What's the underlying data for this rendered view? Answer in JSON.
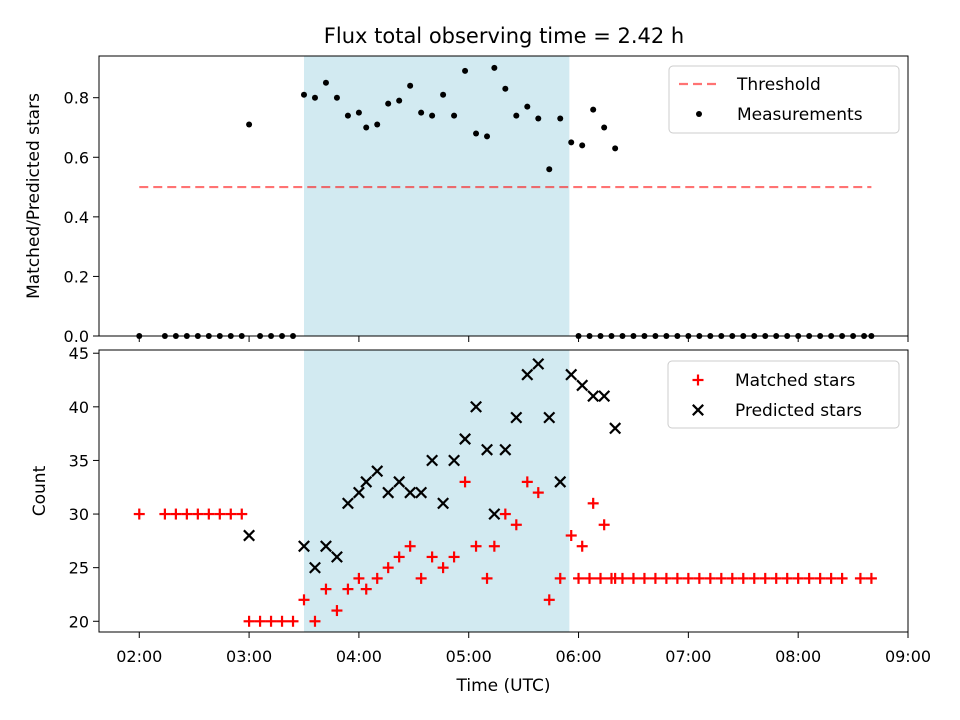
{
  "title": "Flux total observing time = 2.42 h",
  "colors": {
    "shade": "#add8e6",
    "threshold": "#ff0000",
    "measurement": "#000000",
    "matched": "#ff0000",
    "predicted": "#000000"
  },
  "chart_data": [
    {
      "type": "scatter",
      "ylabel": "Matched/Predicted stars",
      "ylim": [
        0,
        0.94
      ],
      "yticks": [
        "0.0",
        "0.2",
        "0.4",
        "0.6",
        "0.8"
      ],
      "shaded_interval": [
        "03:30",
        "05:55"
      ],
      "legend": {
        "placement": "top-right"
      },
      "threshold": {
        "name": "Threshold",
        "value": 0.5,
        "x_range": [
          "02:00",
          "08:40"
        ]
      },
      "series": [
        {
          "name": "Measurements",
          "points": [
            [
              "02:00",
              0
            ],
            [
              "02:14",
              0
            ],
            [
              "02:20",
              0
            ],
            [
              "02:26",
              0
            ],
            [
              "02:32",
              0
            ],
            [
              "02:38",
              0
            ],
            [
              "02:44",
              0
            ],
            [
              "02:50",
              0
            ],
            [
              "02:56",
              0
            ],
            [
              "03:00",
              0.71
            ],
            [
              "03:06",
              0
            ],
            [
              "03:12",
              0
            ],
            [
              "03:18",
              0
            ],
            [
              "03:24",
              0
            ],
            [
              "03:30",
              0.81
            ],
            [
              "03:36",
              0.8
            ],
            [
              "03:42",
              0.85
            ],
            [
              "03:48",
              0.8
            ],
            [
              "03:54",
              0.74
            ],
            [
              "04:00",
              0.75
            ],
            [
              "04:04",
              0.7
            ],
            [
              "04:10",
              0.71
            ],
            [
              "04:16",
              0.78
            ],
            [
              "04:22",
              0.79
            ],
            [
              "04:28",
              0.84
            ],
            [
              "04:34",
              0.75
            ],
            [
              "04:40",
              0.74
            ],
            [
              "04:46",
              0.81
            ],
            [
              "04:52",
              0.74
            ],
            [
              "04:58",
              0.89
            ],
            [
              "05:04",
              0.68
            ],
            [
              "05:10",
              0.67
            ],
            [
              "05:14",
              0.9
            ],
            [
              "05:20",
              0.83
            ],
            [
              "05:26",
              0.74
            ],
            [
              "05:32",
              0.77
            ],
            [
              "05:38",
              0.73
            ],
            [
              "05:44",
              0.56
            ],
            [
              "05:50",
              0.73
            ],
            [
              "05:56",
              0.65
            ],
            [
              "06:02",
              0.64
            ],
            [
              "06:08",
              0.76
            ],
            [
              "06:14",
              0.7
            ],
            [
              "06:20",
              0.63
            ],
            [
              "06:00",
              0
            ],
            [
              "06:06",
              0
            ],
            [
              "06:12",
              0
            ],
            [
              "06:18",
              0
            ],
            [
              "06:24",
              0
            ],
            [
              "06:30",
              0
            ],
            [
              "06:36",
              0
            ],
            [
              "06:42",
              0
            ],
            [
              "06:48",
              0
            ],
            [
              "06:54",
              0
            ],
            [
              "07:00",
              0
            ],
            [
              "07:06",
              0
            ],
            [
              "07:12",
              0
            ],
            [
              "07:18",
              0
            ],
            [
              "07:24",
              0
            ],
            [
              "07:30",
              0
            ],
            [
              "07:36",
              0
            ],
            [
              "07:42",
              0
            ],
            [
              "07:48",
              0
            ],
            [
              "07:54",
              0
            ],
            [
              "08:00",
              0
            ],
            [
              "08:06",
              0
            ],
            [
              "08:12",
              0
            ],
            [
              "08:18",
              0
            ],
            [
              "08:24",
              0
            ],
            [
              "08:30",
              0
            ],
            [
              "08:36",
              0
            ],
            [
              "08:40",
              0
            ]
          ]
        }
      ]
    },
    {
      "type": "scatter",
      "xlabel": "Time (UTC)",
      "ylabel": "Count",
      "ylim": [
        19,
        45.3
      ],
      "yticks": [
        "20",
        "25",
        "30",
        "35",
        "40",
        "45"
      ],
      "xticks": [
        "02:00",
        "03:00",
        "04:00",
        "05:00",
        "06:00",
        "07:00",
        "08:00",
        "09:00"
      ],
      "xlim": [
        "01:38",
        "09:00"
      ],
      "shaded_interval": [
        "03:30",
        "05:55"
      ],
      "legend": {
        "placement": "top-right"
      },
      "series": [
        {
          "name": "Matched stars",
          "marker": "+",
          "points": [
            [
              "02:00",
              30
            ],
            [
              "02:14",
              30
            ],
            [
              "02:20",
              30
            ],
            [
              "02:26",
              30
            ],
            [
              "02:32",
              30
            ],
            [
              "02:38",
              30
            ],
            [
              "02:44",
              30
            ],
            [
              "02:50",
              30
            ],
            [
              "02:56",
              30
            ],
            [
              "03:00",
              20
            ],
            [
              "03:06",
              20
            ],
            [
              "03:12",
              20
            ],
            [
              "03:18",
              20
            ],
            [
              "03:24",
              20
            ],
            [
              "03:30",
              22
            ],
            [
              "03:36",
              20
            ],
            [
              "03:42",
              23
            ],
            [
              "03:48",
              21
            ],
            [
              "03:54",
              23
            ],
            [
              "04:00",
              24
            ],
            [
              "04:04",
              23
            ],
            [
              "04:10",
              24
            ],
            [
              "04:16",
              25
            ],
            [
              "04:22",
              26
            ],
            [
              "04:28",
              27
            ],
            [
              "04:34",
              24
            ],
            [
              "04:40",
              26
            ],
            [
              "04:46",
              25
            ],
            [
              "04:52",
              26
            ],
            [
              "04:58",
              33
            ],
            [
              "05:04",
              27
            ],
            [
              "05:10",
              24
            ],
            [
              "05:14",
              27
            ],
            [
              "05:20",
              30
            ],
            [
              "05:26",
              29
            ],
            [
              "05:32",
              33
            ],
            [
              "05:38",
              32
            ],
            [
              "05:44",
              22
            ],
            [
              "05:50",
              24
            ],
            [
              "05:56",
              28
            ],
            [
              "06:02",
              27
            ],
            [
              "06:08",
              31
            ],
            [
              "06:14",
              29
            ],
            [
              "06:20",
              24
            ],
            [
              "06:00",
              24
            ],
            [
              "06:06",
              24
            ],
            [
              "06:12",
              24
            ],
            [
              "06:18",
              24
            ],
            [
              "06:24",
              24
            ],
            [
              "06:30",
              24
            ],
            [
              "06:36",
              24
            ],
            [
              "06:42",
              24
            ],
            [
              "06:48",
              24
            ],
            [
              "06:54",
              24
            ],
            [
              "07:00",
              24
            ],
            [
              "07:06",
              24
            ],
            [
              "07:12",
              24
            ],
            [
              "07:18",
              24
            ],
            [
              "07:24",
              24
            ],
            [
              "07:30",
              24
            ],
            [
              "07:36",
              24
            ],
            [
              "07:42",
              24
            ],
            [
              "07:48",
              24
            ],
            [
              "07:54",
              24
            ],
            [
              "08:00",
              24
            ],
            [
              "08:06",
              24
            ],
            [
              "08:12",
              24
            ],
            [
              "08:18",
              24
            ],
            [
              "08:24",
              24
            ],
            [
              "08:34",
              24
            ],
            [
              "08:40",
              24
            ]
          ]
        },
        {
          "name": "Predicted stars",
          "marker": "x",
          "points": [
            [
              "03:00",
              28
            ],
            [
              "03:30",
              27
            ],
            [
              "03:36",
              25
            ],
            [
              "03:42",
              27
            ],
            [
              "03:48",
              26
            ],
            [
              "03:54",
              31
            ],
            [
              "04:00",
              32
            ],
            [
              "04:04",
              33
            ],
            [
              "04:10",
              34
            ],
            [
              "04:16",
              32
            ],
            [
              "04:22",
              33
            ],
            [
              "04:28",
              32
            ],
            [
              "04:34",
              32
            ],
            [
              "04:40",
              35
            ],
            [
              "04:46",
              31
            ],
            [
              "04:52",
              35
            ],
            [
              "04:58",
              37
            ],
            [
              "05:04",
              40
            ],
            [
              "05:10",
              36
            ],
            [
              "05:14",
              30
            ],
            [
              "05:20",
              36
            ],
            [
              "05:26",
              39
            ],
            [
              "05:32",
              43
            ],
            [
              "05:38",
              44
            ],
            [
              "05:44",
              39
            ],
            [
              "05:50",
              33
            ],
            [
              "05:56",
              43
            ],
            [
              "06:02",
              42
            ],
            [
              "06:08",
              41
            ],
            [
              "06:14",
              41
            ],
            [
              "06:20",
              38
            ]
          ]
        }
      ]
    }
  ]
}
